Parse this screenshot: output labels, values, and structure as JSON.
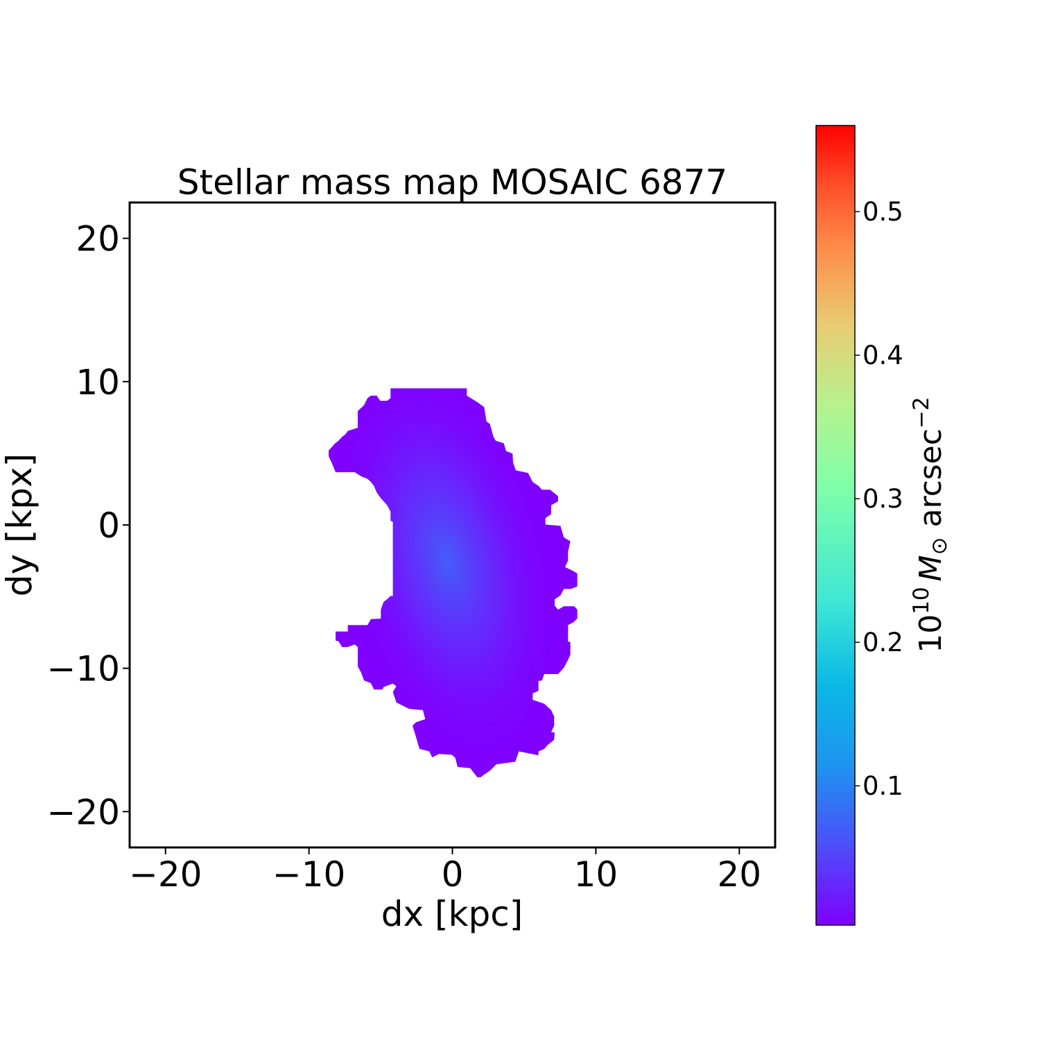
{
  "chart_data": {
    "type": "heatmap",
    "title": "Stellar mass map MOSAIC 6877",
    "xlabel": "dx [kpc]",
    "ylabel": "dy [kpx]",
    "xlim": [
      -22.5,
      22.5
    ],
    "ylim": [
      -22.5,
      22.5
    ],
    "xticks": [
      -20,
      -10,
      0,
      10,
      20
    ],
    "xtick_labels": [
      "−20",
      "−10",
      "0",
      "10",
      "20"
    ],
    "yticks": [
      -20,
      -10,
      0,
      10,
      20
    ],
    "ytick_labels": [
      "−20",
      "−10",
      "0",
      "10",
      "20"
    ],
    "colormap": "rainbow",
    "peak_position": [
      -0.2,
      -1.6
    ],
    "colorbar": {
      "label": "10^10 M_⊙ arcsec^-2",
      "label_base": "10",
      "label_exp": "10",
      "label_symbol": "M",
      "label_sub": "⊙",
      "label_unit": " arcsec",
      "label_unit_exp": "−2",
      "range": [
        0.003,
        0.56
      ],
      "ticks": [
        0.1,
        0.2,
        0.3,
        0.4,
        0.5
      ],
      "tick_labels": [
        "0.1",
        "0.2",
        "0.3",
        "0.4",
        "0.5"
      ]
    },
    "grid": false
  }
}
